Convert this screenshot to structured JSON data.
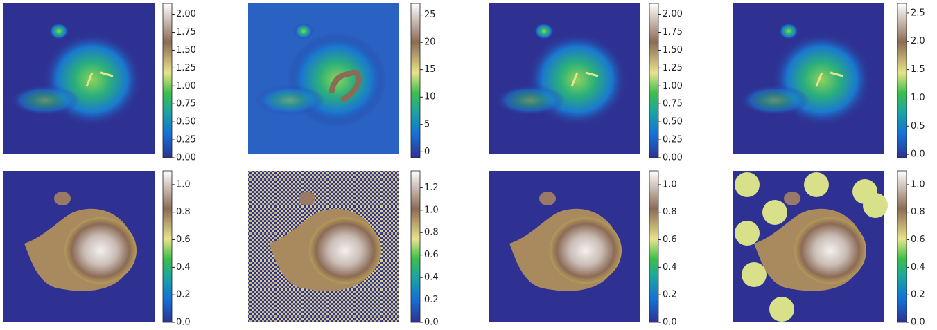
{
  "chart_data": [
    {
      "type": "heatmap",
      "zlim": [
        0,
        2.15
      ],
      "zticks": [
        {
          "value": 0,
          "label": "0.00"
        },
        0.25,
        {
          "value": 0.5,
          "label": "0.50"
        },
        0.75,
        {
          "value": 1,
          "label": "1.00"
        },
        1.25,
        {
          "value": 1.5,
          "label": "1.50"
        },
        1.75,
        {
          "value": 2,
          "label": "2.00"
        }
      ]
    },
    {
      "type": "heatmap",
      "zlim": [
        -1.1,
        27.1
      ],
      "zticks": [
        0,
        5,
        10,
        15,
        20,
        25
      ]
    },
    {
      "type": "heatmap",
      "zlim": [
        0,
        2.15
      ],
      "zticks": [
        {
          "value": 0,
          "label": "0.00"
        },
        0.25,
        {
          "value": 0.5,
          "label": "0.50"
        },
        0.75,
        {
          "value": 1,
          "label": "1.00"
        },
        1.25,
        {
          "value": 1.5,
          "label": "1.50"
        },
        1.75,
        {
          "value": 2,
          "label": "2.00"
        }
      ]
    },
    {
      "type": "heatmap",
      "zlim": [
        -0.06,
        2.67
      ],
      "zticks": [
        {
          "value": 0,
          "label": "0.0"
        },
        0.5,
        {
          "value": 1,
          "label": "1.0"
        },
        1.5,
        {
          "value": 2,
          "label": "2.0"
        },
        2.5
      ]
    },
    {
      "type": "heatmap",
      "zlim": [
        0,
        1.1
      ],
      "zticks": [
        {
          "value": 0,
          "label": "0.0"
        },
        0.2,
        0.4,
        0.6,
        0.8,
        {
          "value": 1,
          "label": "1.0"
        }
      ]
    },
    {
      "type": "heatmap",
      "zlim": [
        0,
        1.35
      ],
      "zticks": [
        {
          "value": 0,
          "label": "0.0"
        },
        0.2,
        0.4,
        0.6,
        0.8,
        {
          "value": 1,
          "label": "1.0"
        },
        1.2
      ]
    },
    {
      "type": "heatmap",
      "zlim": [
        0,
        1.1
      ],
      "zticks": [
        {
          "value": 0,
          "label": "0.0"
        },
        0.2,
        0.4,
        0.6,
        0.8,
        {
          "value": 1,
          "label": "1.0"
        }
      ]
    },
    {
      "type": "heatmap",
      "zlim": [
        0,
        1.1
      ],
      "zticks": [
        {
          "value": 0,
          "label": "0.0"
        },
        0.2,
        0.4,
        0.6,
        0.8,
        {
          "value": 1,
          "label": "1.0"
        }
      ]
    }
  ]
}
